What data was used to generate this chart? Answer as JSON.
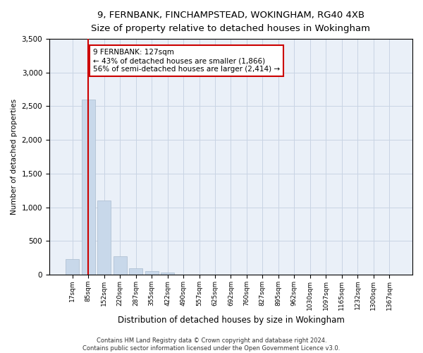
{
  "title_line1": "9, FERNBANK, FINCHAMPSTEAD, WOKINGHAM, RG40 4XB",
  "title_line2": "Size of property relative to detached houses in Wokingham",
  "xlabel": "Distribution of detached houses by size in Wokingham",
  "ylabel": "Number of detached properties",
  "bar_color": "#c8d8ea",
  "bar_edge_color": "#aabcce",
  "vline_color": "#cc0000",
  "vline_x": 1,
  "categories": [
    "17sqm",
    "85sqm",
    "152sqm",
    "220sqm",
    "287sqm",
    "355sqm",
    "422sqm",
    "490sqm",
    "557sqm",
    "625sqm",
    "692sqm",
    "760sqm",
    "827sqm",
    "895sqm",
    "962sqm",
    "1030sqm",
    "1097sqm",
    "1165sqm",
    "1232sqm",
    "1300sqm",
    "1367sqm"
  ],
  "values": [
    230,
    2600,
    1100,
    270,
    90,
    55,
    35,
    0,
    0,
    0,
    0,
    0,
    0,
    0,
    0,
    0,
    0,
    0,
    0,
    0,
    0
  ],
  "ylim": [
    0,
    3500
  ],
  "yticks": [
    0,
    500,
    1000,
    1500,
    2000,
    2500,
    3000,
    3500
  ],
  "annotation_text": "9 FERNBANK: 127sqm\n← 43% of detached houses are smaller (1,866)\n56% of semi-detached houses are larger (2,414) →",
  "footer_line1": "Contains HM Land Registry data © Crown copyright and database right 2024.",
  "footer_line2": "Contains public sector information licensed under the Open Government Licence v3.0.",
  "bg_color": "#ffffff",
  "plot_bg_color": "#eaf0f8",
  "grid_color": "#c8d4e4"
}
